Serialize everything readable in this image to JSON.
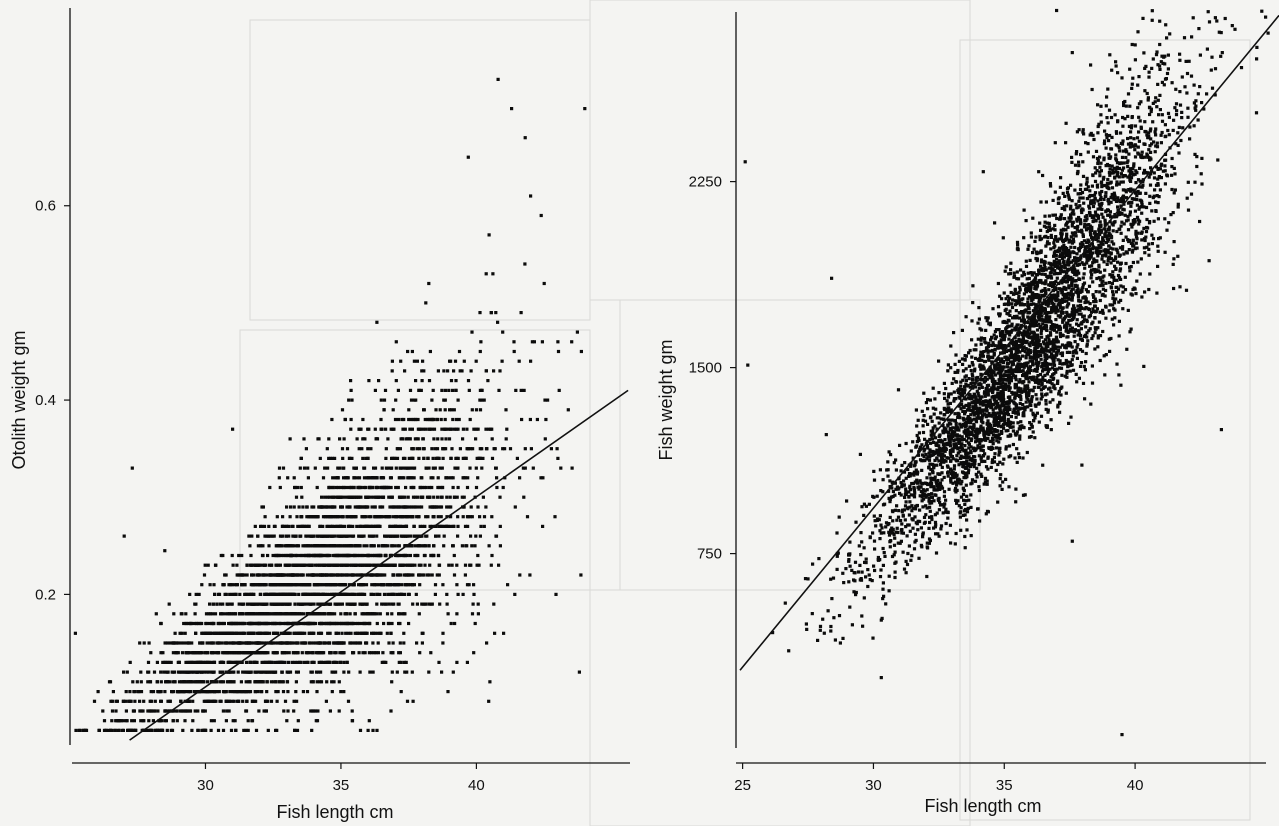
{
  "chart_data": [
    {
      "type": "scatter",
      "title": "",
      "xlabel": "Fish length cm",
      "ylabel": "Otolith weight gm",
      "xlim": [
        25,
        45.3
      ],
      "ylim": [
        0.045,
        0.75
      ],
      "xticks": [
        30,
        35,
        40
      ],
      "xtick_labels": [
        "30",
        "35",
        "40"
      ],
      "yticks": [
        0.2,
        0.4,
        0.6
      ],
      "ytick_labels": [
        "0.2",
        "0.4",
        "0.6"
      ],
      "grid": false,
      "point_summary": {
        "count_approx": 4000,
        "x_range": [
          25.2,
          44.0
        ],
        "y_range": [
          0.06,
          0.74
        ],
        "trend": "increasing; otolith weight recorded in steps of about 0.01 g"
      },
      "outliers": [
        {
          "x": 25.2,
          "y": 0.16
        },
        {
          "x": 27.3,
          "y": 0.33
        },
        {
          "x": 27.0,
          "y": 0.26
        },
        {
          "x": 28.5,
          "y": 0.245
        },
        {
          "x": 31.0,
          "y": 0.37
        },
        {
          "x": 39.7,
          "y": 0.65
        },
        {
          "x": 40.8,
          "y": 0.73
        },
        {
          "x": 41.3,
          "y": 0.7
        },
        {
          "x": 41.8,
          "y": 0.67
        },
        {
          "x": 42.9,
          "y": 0.28
        },
        {
          "x": 43.8,
          "y": 0.12
        },
        {
          "x": 44.0,
          "y": 0.7
        },
        {
          "x": 42.0,
          "y": 0.61
        }
      ],
      "fit_line": {
        "x": [
          27.2,
          45.6
        ],
        "y": [
          0.05,
          0.41
        ]
      }
    },
    {
      "type": "scatter",
      "title": "",
      "xlabel": "Fish length cm",
      "ylabel": "Fish weight gm",
      "xlim": [
        24.9,
        45.5
      ],
      "ylim": [
        -50,
        2950
      ],
      "xticks": [
        25,
        30,
        35,
        40
      ],
      "xtick_labels": [
        "25",
        "30",
        "35",
        "40"
      ],
      "yticks": [
        750,
        1500,
        2250
      ],
      "ytick_labels": [
        "750",
        "1500",
        "2250"
      ],
      "grid": false,
      "point_summary": {
        "count_approx": 4500,
        "x_range": [
          25.0,
          45.5
        ],
        "y_range": [
          0,
          2950
        ],
        "trend": "curved increasing relationship, dense core between 33 and 40 cm"
      },
      "outliers": [
        {
          "x": 37.0,
          "y": 2940
        },
        {
          "x": 38.3,
          "y": 2720
        },
        {
          "x": 37.6,
          "y": 2770
        },
        {
          "x": 34.2,
          "y": 2290
        },
        {
          "x": 25.2,
          "y": 1510
        },
        {
          "x": 28.2,
          "y": 1230
        },
        {
          "x": 29.5,
          "y": 1150
        },
        {
          "x": 33.4,
          "y": 1650
        },
        {
          "x": 30.3,
          "y": 250
        },
        {
          "x": 39.5,
          "y": 20
        },
        {
          "x": 43.3,
          "y": 1250
        },
        {
          "x": 37.6,
          "y": 800
        },
        {
          "x": 33.8,
          "y": 1830
        },
        {
          "x": 25.1,
          "y": 2330
        },
        {
          "x": 28.4,
          "y": 1860
        }
      ],
      "fit_line": {
        "x": [
          24.9,
          45.5
        ],
        "y": [
          280,
          2920
        ]
      }
    }
  ]
}
